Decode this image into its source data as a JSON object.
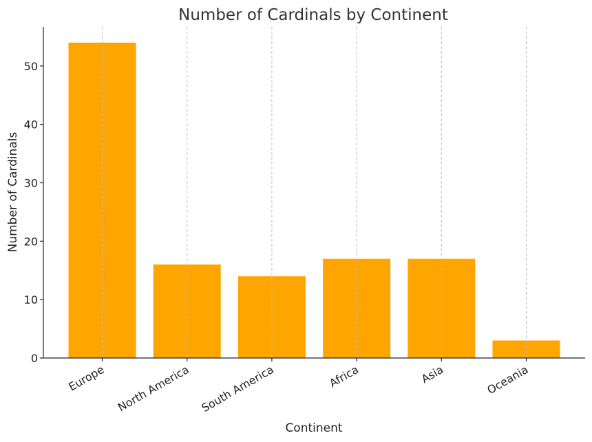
{
  "chart_data": {
    "type": "bar",
    "title": "Number of Cardinals by Continent",
    "xlabel": "Continent",
    "ylabel": "Number of Cardinals",
    "categories": [
      "Europe",
      "North America",
      "South America",
      "Africa",
      "Asia",
      "Oceania"
    ],
    "values": [
      54,
      16,
      14,
      17,
      17,
      3
    ],
    "ylim": [
      0,
      56.7
    ],
    "yticks": [
      0,
      10,
      20,
      30,
      40,
      50
    ],
    "grid": "vertical dashed",
    "bar_color": "#FFA500",
    "grid_color": "#bdbdbd",
    "axis_color": "#222222",
    "title_color": "#333333"
  }
}
